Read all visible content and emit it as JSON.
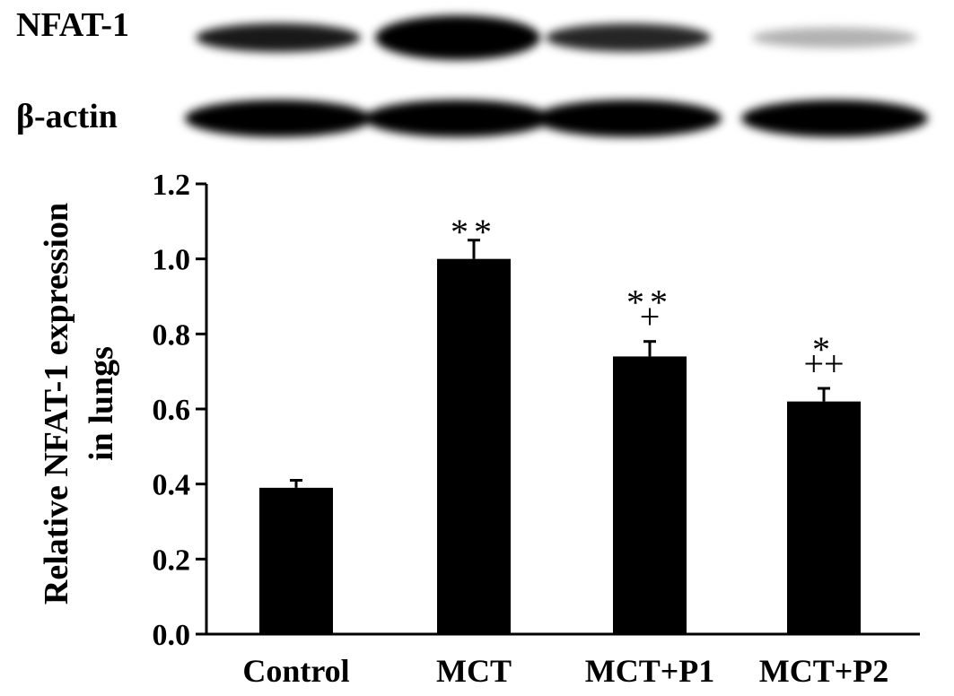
{
  "blot": {
    "rows": [
      {
        "label": "NFAT-1",
        "intensities": [
          0.9,
          1.0,
          0.85,
          0.3
        ]
      },
      {
        "label": "β-actin",
        "intensities": [
          1.0,
          1.0,
          1.0,
          1.0
        ]
      }
    ]
  },
  "chart_data": {
    "type": "bar",
    "categories": [
      "Control",
      "MCT",
      "MCT+P1",
      "MCT+P2"
    ],
    "values": [
      0.39,
      1.0,
      0.74,
      0.62
    ],
    "errors": [
      0.02,
      0.05,
      0.04,
      0.035
    ],
    "annotations": [
      [],
      [
        "**"
      ],
      [
        "**",
        "+"
      ],
      [
        "*",
        "++"
      ]
    ],
    "ylabel_line1": "Relative NFAT-1 expression",
    "ylabel_line2": "in lungs",
    "ylim": [
      0.0,
      1.2
    ],
    "yticks": [
      "0.0",
      "0.2",
      "0.4",
      "0.6",
      "0.8",
      "1.0",
      "1.2"
    ],
    "bar_color": "#000000",
    "grid": false
  }
}
